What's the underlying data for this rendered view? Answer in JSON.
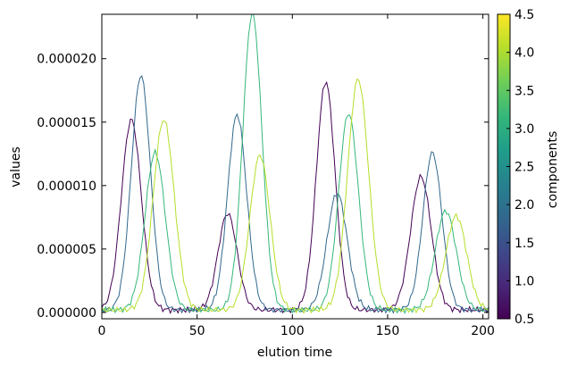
{
  "chart_data": {
    "type": "line",
    "xlabel": "elution time",
    "ylabel": "values",
    "xlim": [
      0,
      203
    ],
    "ylim": [
      -5e-07,
      2.35e-05
    ],
    "xticks": [
      0,
      50,
      100,
      150,
      200
    ],
    "yticks": [
      "0.000000",
      "0.000005",
      "0.000010",
      "0.000015",
      "0.000020"
    ],
    "ytick_values": [
      0,
      5e-06,
      1e-05,
      1.5e-05,
      2e-05
    ],
    "grid": false,
    "colorbar": {
      "label": "components",
      "range": [
        0.5,
        4.5
      ],
      "ticks": [
        "0.5",
        "1.0",
        "1.5",
        "2.0",
        "2.5",
        "3.0",
        "3.5",
        "4.0",
        "4.5"
      ],
      "tick_values": [
        0.5,
        1.0,
        1.5,
        2.0,
        2.5,
        3.0,
        3.5,
        4.0,
        4.5
      ],
      "colormap_stops": [
        "#440154",
        "#482878",
        "#3e4989",
        "#31688e",
        "#26828e",
        "#1f9e89",
        "#35b779",
        "#6ece58",
        "#b5de2b",
        "#fde725"
      ]
    },
    "series": [
      {
        "component": 1,
        "color": "#440154",
        "baseline": 2e-07,
        "peaks": [
          {
            "center": 15.5,
            "height": 1.5e-05,
            "sigma": 5.2
          },
          {
            "center": 66,
            "height": 7.6e-06,
            "sigma": 5.0
          },
          {
            "center": 117.5,
            "height": 1.8e-05,
            "sigma": 4.9
          },
          {
            "center": 167.5,
            "height": 1.05e-05,
            "sigma": 5.4
          }
        ]
      },
      {
        "component": 2,
        "color": "#31688e",
        "baseline": 2e-07,
        "peaks": [
          {
            "center": 20.5,
            "height": 1.85e-05,
            "sigma": 5.0
          },
          {
            "center": 71,
            "height": 1.54e-05,
            "sigma": 5.0
          },
          {
            "center": 123.5,
            "height": 9.2e-06,
            "sigma": 5.3
          },
          {
            "center": 173.5,
            "height": 1.24e-05,
            "sigma": 5.0
          }
        ]
      },
      {
        "component": 3,
        "color": "#35b779",
        "baseline": 2e-07,
        "peaks": [
          {
            "center": 28,
            "height": 1.24e-05,
            "sigma": 5.3
          },
          {
            "center": 79,
            "height": 2.34e-05,
            "sigma": 5.0
          },
          {
            "center": 129.5,
            "height": 1.55e-05,
            "sigma": 5.2
          },
          {
            "center": 180.5,
            "height": 7.8e-06,
            "sigma": 5.5
          }
        ]
      },
      {
        "component": 4,
        "color": "#b5de2b",
        "baseline": 2e-07,
        "peaks": [
          {
            "center": 32.5,
            "height": 1.5e-05,
            "sigma": 5.5
          },
          {
            "center": 83,
            "height": 1.22e-05,
            "sigma": 5.3
          },
          {
            "center": 134.5,
            "height": 1.82e-05,
            "sigma": 5.5
          },
          {
            "center": 186,
            "height": 7.4e-06,
            "sigma": 5.5
          }
        ]
      }
    ]
  }
}
